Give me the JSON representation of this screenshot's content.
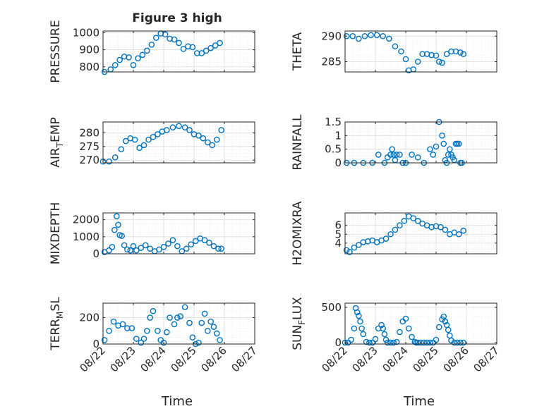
{
  "figure": {
    "title": "Figure 3 high",
    "xlabel": "Time",
    "marker_color": "#0072BD"
  },
  "chart_data": [
    {
      "type": "scatter",
      "ylabel": "PRESSURE",
      "ylim": [
        770,
        1010
      ],
      "yticks": [
        800,
        900,
        1000
      ],
      "ytick_labels": [
        "800",
        "900",
        "1000"
      ],
      "xlim": [
        "08/22",
        "08/27"
      ],
      "xticks": [
        "08/22",
        "08/23",
        "08/24",
        "08/25",
        "08/26",
        "08/27"
      ],
      "grid": true,
      "series": [
        {
          "x": [
            0.05,
            0.25,
            0.4,
            0.55,
            0.7,
            0.85,
            1.0,
            1.15,
            1.3,
            1.45,
            1.6,
            1.75,
            1.9,
            2.05,
            2.2,
            2.35,
            2.5,
            2.65,
            2.8,
            2.95,
            3.1,
            3.25,
            3.4,
            3.55,
            3.7,
            3.85
          ],
          "y": [
            770,
            785,
            810,
            840,
            860,
            855,
            810,
            850,
            870,
            895,
            930,
            970,
            995,
            990,
            965,
            960,
            940,
            905,
            920,
            915,
            880,
            880,
            895,
            910,
            925,
            940
          ]
        }
      ]
    },
    {
      "type": "scatter",
      "ylabel": "THETA",
      "ylim": [
        283,
        291
      ],
      "yticks": [
        285,
        290
      ],
      "ytick_labels": [
        "285",
        "290"
      ],
      "xlim": [
        "08/22",
        "08/27"
      ],
      "xticks": [
        "08/22",
        "08/23",
        "08/24",
        "08/25",
        "08/26",
        "08/27"
      ],
      "grid": true,
      "series": [
        {
          "x": [
            0.05,
            0.25,
            0.45,
            0.65,
            0.85,
            1.05,
            1.25,
            1.45,
            1.65,
            1.85,
            2.0,
            2.1,
            2.25,
            2.4,
            2.55,
            2.7,
            2.85,
            3.0,
            3.1,
            3.2,
            3.35,
            3.5,
            3.65,
            3.8,
            3.9
          ],
          "y": [
            290,
            290,
            289.5,
            290,
            290.2,
            290.2,
            290,
            289.5,
            288,
            287,
            285.5,
            283.3,
            283.5,
            285,
            286.5,
            286.5,
            286.3,
            286.2,
            285,
            284.8,
            286.5,
            287,
            287,
            286.8,
            286.5
          ]
        }
      ]
    },
    {
      "type": "scatter",
      "ylabel": "AIR_TEMP",
      "ylim": [
        269,
        284
      ],
      "yticks": [
        270,
        275,
        280
      ],
      "ytick_labels": [
        "270",
        "275",
        "280"
      ],
      "xlim": [
        "08/22",
        "08/27"
      ],
      "xticks": [
        "08/22",
        "08/23",
        "08/24",
        "08/25",
        "08/26",
        "08/27"
      ],
      "grid": true,
      "series": [
        {
          "x": [
            0.0,
            0.2,
            0.4,
            0.6,
            0.75,
            0.9,
            1.05,
            1.2,
            1.35,
            1.5,
            1.65,
            1.8,
            1.95,
            2.1,
            2.3,
            2.5,
            2.7,
            2.85,
            3.0,
            3.15,
            3.3,
            3.45,
            3.6,
            3.75,
            3.9
          ],
          "y": [
            269.5,
            269.5,
            271,
            274,
            277,
            278,
            277.5,
            274.5,
            275.5,
            277.5,
            278.5,
            279.5,
            280.5,
            281,
            282,
            282.5,
            282,
            281,
            279.5,
            279,
            278,
            276.5,
            275.5,
            277.5,
            281
          ]
        }
      ]
    },
    {
      "type": "scatter",
      "ylabel": "RAINFALL",
      "ylim": [
        0,
        1.5
      ],
      "yticks": [
        0,
        0.5,
        1,
        1.5
      ],
      "ytick_labels": [
        "0",
        "0.5",
        "1",
        "1.5"
      ],
      "xlim": [
        "08/22",
        "08/27"
      ],
      "xticks": [
        "08/22",
        "08/23",
        "08/24",
        "08/25",
        "08/26",
        "08/27"
      ],
      "grid": true,
      "series": [
        {
          "x": [
            0.05,
            0.3,
            0.6,
            0.9,
            1.1,
            1.3,
            1.4,
            1.5,
            1.55,
            1.6,
            1.65,
            1.7,
            1.8,
            1.9,
            2.0,
            2.2,
            2.4,
            2.6,
            2.8,
            2.9,
            3.0,
            3.1,
            3.2,
            3.25,
            3.3,
            3.35,
            3.4,
            3.45,
            3.5,
            3.55,
            3.6,
            3.65,
            3.7,
            3.75,
            3.8,
            3.85
          ],
          "y": [
            0,
            0,
            0,
            0,
            0.3,
            0,
            0.2,
            0.3,
            0.5,
            0.3,
            0.1,
            0.3,
            0.3,
            0,
            0,
            0.3,
            0.2,
            0,
            0.5,
            0.3,
            0.6,
            1.5,
            1.0,
            0.7,
            0.1,
            0,
            0.3,
            0.5,
            0.3,
            0.2,
            0.1,
            0.7,
            0.7,
            0.7,
            0,
            0
          ]
        }
      ]
    },
    {
      "type": "scatter",
      "ylabel": "MIXDEPTH",
      "ylim": [
        0,
        2400
      ],
      "yticks": [
        0,
        1000,
        2000
      ],
      "ytick_labels": [
        "0",
        "1000",
        "2000"
      ],
      "xlim": [
        "08/22",
        "08/27"
      ],
      "xticks": [
        "08/22",
        "08/23",
        "08/24",
        "08/25",
        "08/26",
        "08/27"
      ],
      "grid": true,
      "series": [
        {
          "x": [
            0.05,
            0.2,
            0.3,
            0.38,
            0.45,
            0.5,
            0.55,
            0.62,
            0.7,
            0.8,
            0.9,
            1.0,
            1.1,
            1.25,
            1.4,
            1.55,
            1.7,
            1.85,
            2.0,
            2.15,
            2.3,
            2.45,
            2.6,
            2.75,
            2.9,
            3.05,
            3.2,
            3.35,
            3.5,
            3.65,
            3.8,
            3.9
          ],
          "y": [
            100,
            200,
            400,
            1400,
            2200,
            1700,
            1100,
            1050,
            500,
            250,
            200,
            450,
            200,
            350,
            500,
            300,
            150,
            250,
            400,
            600,
            800,
            450,
            150,
            300,
            550,
            750,
            900,
            800,
            650,
            450,
            300,
            300
          ]
        }
      ]
    },
    {
      "type": "scatter",
      "ylabel": "H2OMIXRA",
      "ylim": [
        2.8,
        7.4
      ],
      "yticks": [
        4,
        5,
        6
      ],
      "ytick_labels": [
        "4",
        "5",
        "6"
      ],
      "xlim": [
        "08/22",
        "08/27"
      ],
      "xticks": [
        "08/22",
        "08/23",
        "08/24",
        "08/25",
        "08/26",
        "08/27"
      ],
      "grid": true,
      "series": [
        {
          "x": [
            0.05,
            0.15,
            0.3,
            0.45,
            0.6,
            0.75,
            0.9,
            1.05,
            1.2,
            1.35,
            1.5,
            1.65,
            1.8,
            1.95,
            2.1,
            2.25,
            2.4,
            2.55,
            2.7,
            2.85,
            3.0,
            3.15,
            3.3,
            3.45,
            3.6,
            3.75,
            3.9
          ],
          "y": [
            3.2,
            3.0,
            3.5,
            3.8,
            4.1,
            4.2,
            4.3,
            4.1,
            4.3,
            4.5,
            5.0,
            5.5,
            6.0,
            6.5,
            7.0,
            6.8,
            6.5,
            6.2,
            6.0,
            5.8,
            5.9,
            5.8,
            5.5,
            5.0,
            5.2,
            5.0,
            5.4
          ]
        }
      ]
    },
    {
      "type": "scatter",
      "ylabel": "TERR_MSL",
      "ylim": [
        0,
        310
      ],
      "yticks": [
        0,
        200
      ],
      "ytick_labels": [
        "0",
        "200"
      ],
      "xlim": [
        "08/22",
        "08/27"
      ],
      "xticks": [
        "08/22",
        "08/23",
        "08/24",
        "08/25",
        "08/26",
        "08/27"
      ],
      "grid": true,
      "series": [
        {
          "x": [
            0.05,
            0.2,
            0.35,
            0.5,
            0.65,
            0.8,
            0.95,
            1.1,
            1.25,
            1.35,
            1.45,
            1.55,
            1.65,
            1.8,
            1.9,
            2.0,
            2.1,
            2.2,
            2.35,
            2.45,
            2.55,
            2.7,
            2.85,
            2.95,
            3.05,
            3.15,
            3.25,
            3.35,
            3.45,
            3.55,
            3.65,
            3.75,
            3.85
          ],
          "y": [
            30,
            100,
            170,
            140,
            150,
            120,
            120,
            40,
            10,
            40,
            100,
            200,
            250,
            100,
            30,
            10,
            90,
            200,
            150,
            200,
            210,
            280,
            160,
            50,
            0,
            10,
            160,
            230,
            100,
            170,
            130,
            80,
            30
          ]
        }
      ]
    },
    {
      "type": "scatter",
      "ylabel": "SUN_FLUX",
      "ylim": [
        -20,
        560
      ],
      "yticks": [
        0,
        500
      ],
      "ytick_labels": [
        "0",
        "500"
      ],
      "xlim": [
        "08/22",
        "08/27"
      ],
      "xticks": [
        "08/22",
        "08/23",
        "08/24",
        "08/25",
        "08/26",
        "08/27"
      ],
      "grid": true,
      "series": [
        {
          "x": [
            0.0,
            0.1,
            0.2,
            0.3,
            0.35,
            0.4,
            0.45,
            0.5,
            0.55,
            0.6,
            0.7,
            0.8,
            0.9,
            1.0,
            1.1,
            1.2,
            1.25,
            1.3,
            1.35,
            1.4,
            1.5,
            1.6,
            1.7,
            1.8,
            1.9,
            2.0,
            2.1,
            2.2,
            2.3,
            2.35,
            2.4,
            2.5,
            2.6,
            2.7,
            2.8,
            2.9,
            3.0,
            3.1,
            3.2,
            3.25,
            3.3,
            3.35,
            3.4,
            3.45,
            3.5,
            3.6,
            3.7,
            3.8,
            3.9
          ],
          "y": [
            0,
            0,
            40,
            200,
            490,
            430,
            380,
            300,
            200,
            120,
            10,
            0,
            0,
            50,
            200,
            250,
            200,
            120,
            40,
            0,
            0,
            0,
            10,
            150,
            300,
            340,
            200,
            80,
            10,
            0,
            0,
            0,
            0,
            0,
            0,
            0,
            40,
            220,
            330,
            370,
            300,
            250,
            180,
            100,
            30,
            0,
            0,
            0,
            0
          ]
        }
      ]
    }
  ]
}
